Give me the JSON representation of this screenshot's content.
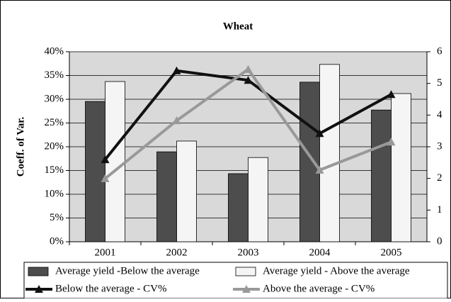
{
  "chart_data": {
    "type": "bar-line",
    "title": "Wheat",
    "y_label": "Coeff. of Var.",
    "categories": [
      "2001",
      "2002",
      "2003",
      "2004",
      "2005"
    ],
    "ylim": [
      0,
      40
    ],
    "yticks": [
      {
        "value": 0,
        "label": "0%"
      },
      {
        "value": 5,
        "label": "5%"
      },
      {
        "value": 10,
        "label": "10%"
      },
      {
        "value": 15,
        "label": "15%"
      },
      {
        "value": 20,
        "label": "20%"
      },
      {
        "value": 25,
        "label": "25%"
      },
      {
        "value": 30,
        "label": "30%"
      },
      {
        "value": 35,
        "label": "35%"
      },
      {
        "value": 40,
        "label": "40%"
      }
    ],
    "y2lim": [
      0,
      6
    ],
    "y2ticks": [
      0,
      1,
      2,
      3,
      4,
      5,
      6
    ],
    "grid": true,
    "series": [
      {
        "name": "Average yield -Below the average",
        "kind": "bar",
        "axis": "y2",
        "color": "#4d4d4d",
        "values": [
          4.43,
          2.84,
          2.15,
          5.04,
          4.16
        ]
      },
      {
        "name": "Average yield - Above the average",
        "kind": "bar",
        "axis": "y2",
        "color": "#f5f5f5",
        "values": [
          5.06,
          3.18,
          2.66,
          5.6,
          4.68
        ]
      },
      {
        "name": "Below the average - CV%",
        "kind": "line",
        "color": "#111111",
        "values": [
          17.3,
          36.0,
          34.0,
          22.8,
          31.0
        ]
      },
      {
        "name": "Above the average - CV%",
        "kind": "line",
        "color": "#999999",
        "values": [
          13.3,
          25.5,
          36.3,
          15.1,
          21.0
        ]
      }
    ]
  }
}
